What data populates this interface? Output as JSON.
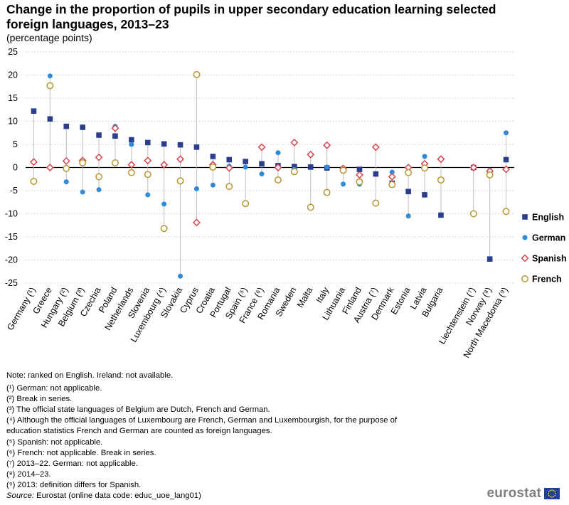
{
  "chart_data": {
    "type": "dot",
    "title": "Change in the proportion of pupils in upper secondary education learning selected foreign languages, 2013–23",
    "subtitle": "(percentage points)",
    "ylim": [
      -25,
      25
    ],
    "yticks": [
      25,
      20,
      15,
      10,
      5,
      0,
      -5,
      -10,
      -15,
      -20,
      -25
    ],
    "categories": [
      "Germany (¹)",
      "Greece",
      "Hungary (²)",
      "Belgium (³)",
      "Czechia",
      "Poland",
      "Netherlands",
      "Slovenia",
      "Luxembourg (⁴)",
      "Slovakia",
      "Cyprus",
      "Croatia",
      "Portugal",
      "Spain (⁵)",
      "France (⁶)",
      "Romania",
      "Sweden",
      "Malta",
      "Italy",
      "Lithuania",
      "Finland",
      "Austria (⁷)",
      "Denmark",
      "Estonia",
      "Latvia",
      "Bulgaria",
      "",
      "Liechtenstein (⁷)",
      "Norway (⁸)",
      "North Macedonia (⁹)"
    ],
    "series": [
      {
        "name": "English",
        "color": "#2b3e8e",
        "marker": "square",
        "values": [
          12.2,
          10.5,
          8.9,
          8.7,
          7.0,
          6.8,
          6.0,
          5.4,
          5.1,
          4.9,
          4.4,
          2.4,
          1.7,
          1.3,
          0.8,
          0.4,
          0.2,
          0.1,
          -0.1,
          -0.4,
          -0.4,
          -1.4,
          -3.4,
          -5.2,
          -5.9,
          -10.3,
          null,
          0.0,
          -19.8,
          1.7
        ]
      },
      {
        "name": "German",
        "color": "#2f8ad8",
        "marker": "circle",
        "values": [
          null,
          19.8,
          -3.1,
          -5.3,
          -4.8,
          8.9,
          5.0,
          -5.9,
          -7.9,
          -23.5,
          -4.6,
          -3.8,
          0.3,
          0.1,
          -1.4,
          3.2,
          -0.4,
          2.7,
          0.1,
          -3.6,
          -3.6,
          null,
          -1.0,
          -10.5,
          2.4,
          1.9,
          null,
          null,
          -0.6,
          7.5
        ]
      },
      {
        "name": "Spanish",
        "color": "#d9434b",
        "marker": "diamond",
        "values": [
          1.2,
          0.0,
          1.4,
          1.5,
          2.2,
          8.5,
          0.6,
          1.5,
          0.6,
          1.8,
          -11.9,
          0.6,
          -0.1,
          null,
          4.4,
          0.0,
          5.4,
          2.8,
          4.8,
          -0.2,
          -1.6,
          4.4,
          -2.0,
          0.0,
          0.8,
          1.8,
          null,
          0.0,
          -0.8,
          -0.4
        ]
      },
      {
        "name": "French",
        "color": "#b7952c",
        "marker": "ring",
        "values": [
          -3.0,
          17.7,
          -0.2,
          1.0,
          -2.0,
          1.0,
          -1.1,
          -1.5,
          -13.2,
          -2.9,
          20.1,
          0.1,
          -4.1,
          -7.8,
          null,
          -2.7,
          -0.9,
          -8.6,
          -5.4,
          -0.6,
          -3.1,
          -7.7,
          -3.7,
          -1.1,
          -0.1,
          -2.7,
          null,
          -10.0,
          -1.6,
          -9.5
        ]
      }
    ]
  },
  "notes": [
    "Note: ranked on English. Ireland: not available.",
    "(¹) German: not applicable.",
    "(²) Break in series.",
    "(³) The official state languages of Belgium are Dutch, French and German.",
    "(⁴) Although the official languages of Luxembourg are French, German and Luxembourgish, for the purpose of",
    "education statistics French and German are counted as foreign languages.",
    "(⁵) Spanish: not applicable.",
    "(⁶) French: not applicable. Break in series.",
    "(⁷) 2013–22. German: not applicable.",
    "(⁸) 2014–23.",
    "(⁹) 2013: definition differs for Spanish."
  ],
  "source": {
    "label": "Source:",
    "text": " Eurostat (online data code: educ_uoe_lang01)"
  },
  "logo": {
    "text": "eurostat"
  }
}
